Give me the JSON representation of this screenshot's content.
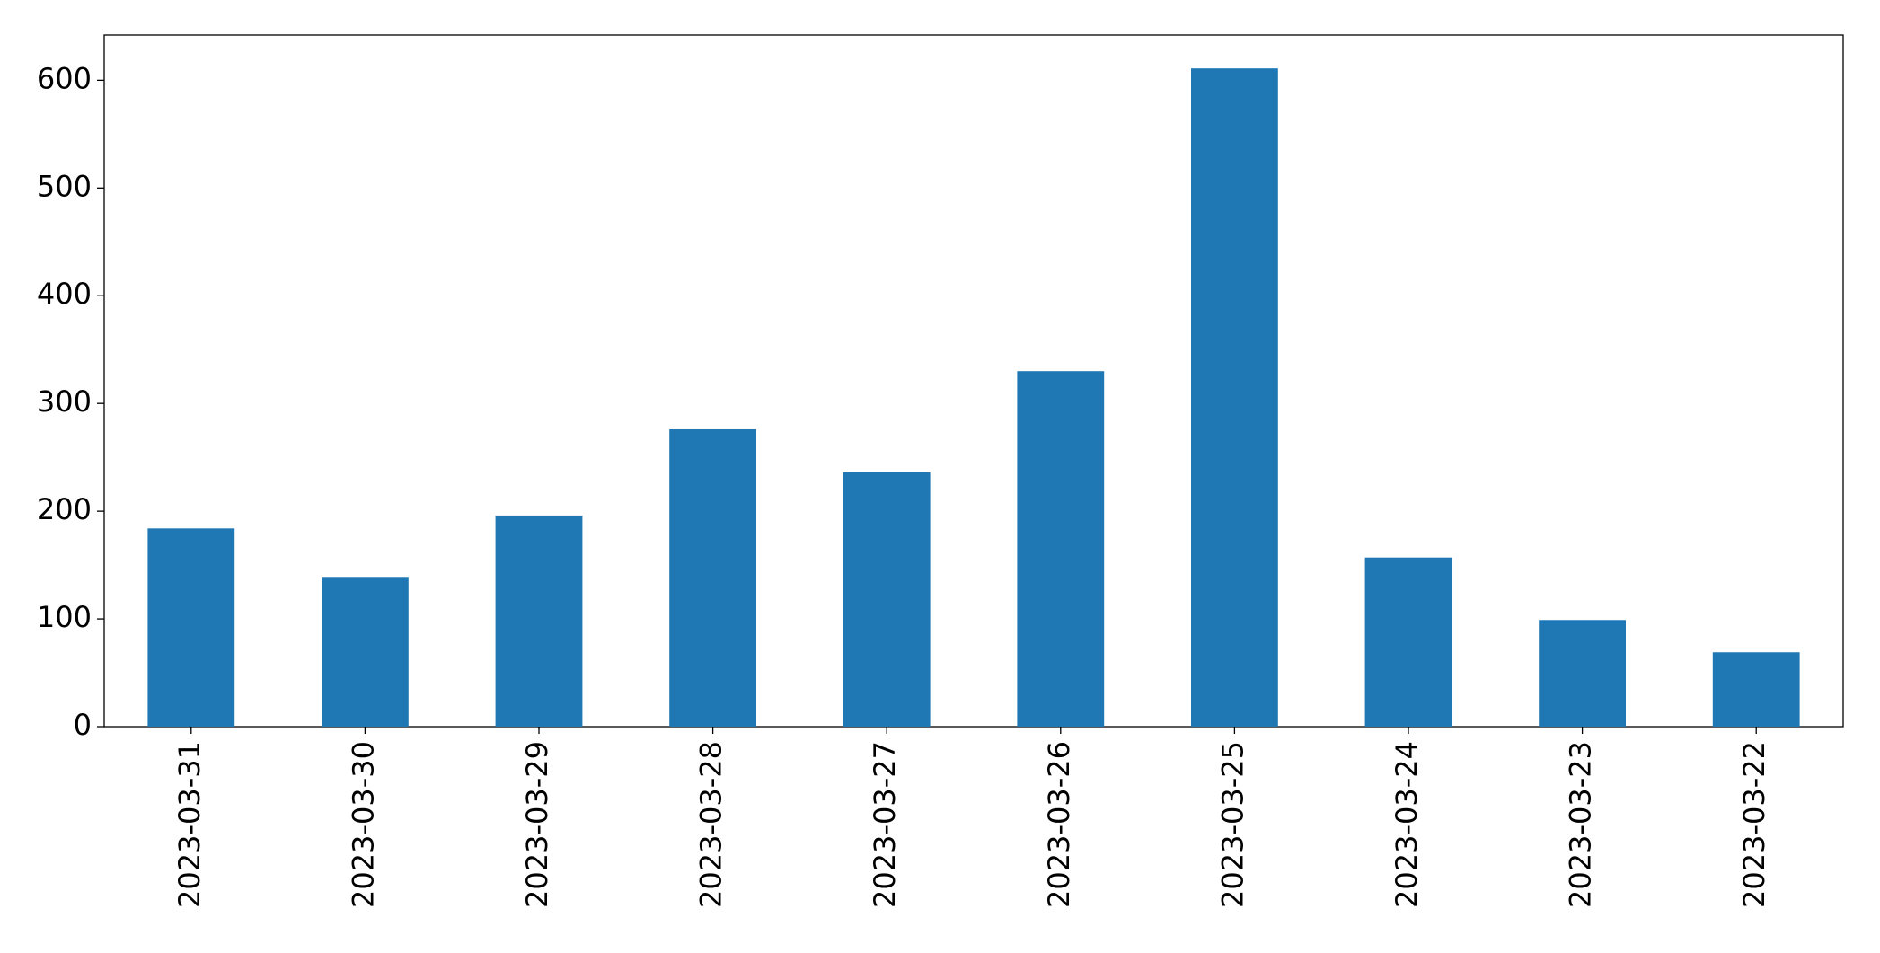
{
  "chart_data": {
    "type": "bar",
    "categories": [
      "2023-03-31",
      "2023-03-30",
      "2023-03-29",
      "2023-03-28",
      "2023-03-27",
      "2023-03-26",
      "2023-03-25",
      "2023-03-24",
      "2023-03-23",
      "2023-03-22"
    ],
    "values": [
      184,
      139,
      196,
      276,
      236,
      330,
      611,
      157,
      99,
      69
    ],
    "color": "#1f77b4",
    "ylim": [
      0,
      642
    ],
    "yticks": [
      0,
      100,
      200,
      300,
      400,
      500,
      600
    ],
    "grid": false
  }
}
